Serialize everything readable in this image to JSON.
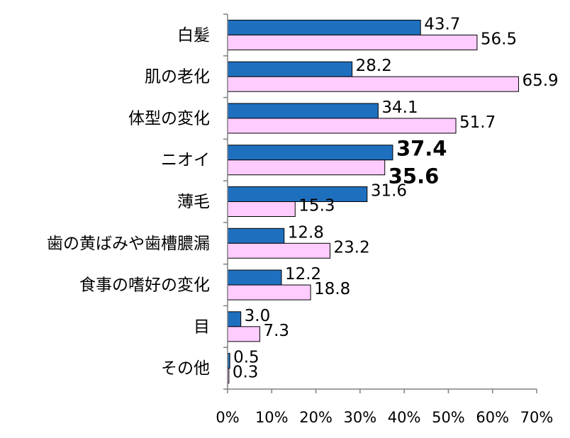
{
  "chart_data": {
    "type": "bar",
    "orientation": "horizontal",
    "categories": [
      "白髪",
      "肌の老化",
      "体型の変化",
      "ニオイ",
      "薄毛",
      "歯の黄ばみや歯槽膿漏",
      "食事の嗜好の変化",
      "目",
      "その他"
    ],
    "series": [
      {
        "values": [
          43.7,
          28.2,
          34.1,
          37.4,
          31.6,
          12.8,
          12.2,
          3.0,
          0.5
        ],
        "labels": [
          "43.7",
          "28.2",
          "34.1",
          "37.4",
          "31.6",
          "12.8",
          "12.2",
          "3.0",
          "0.5"
        ],
        "color": "#1f6fbf"
      },
      {
        "values": [
          56.5,
          65.9,
          51.7,
          35.6,
          15.3,
          23.2,
          18.8,
          7.3,
          0.3
        ],
        "labels": [
          "56.5",
          "65.9",
          "51.7",
          "35.6",
          "15.3",
          "23.2",
          "18.8",
          "7.3",
          "0.3"
        ],
        "color": "#ffccff"
      }
    ],
    "bold_category_index": 3,
    "xlim": [
      0,
      70
    ],
    "xticks": [
      "0%",
      "10%",
      "20%",
      "30%",
      "40%",
      "50%",
      "60%",
      "70%"
    ],
    "grid": false,
    "legend": "none"
  }
}
